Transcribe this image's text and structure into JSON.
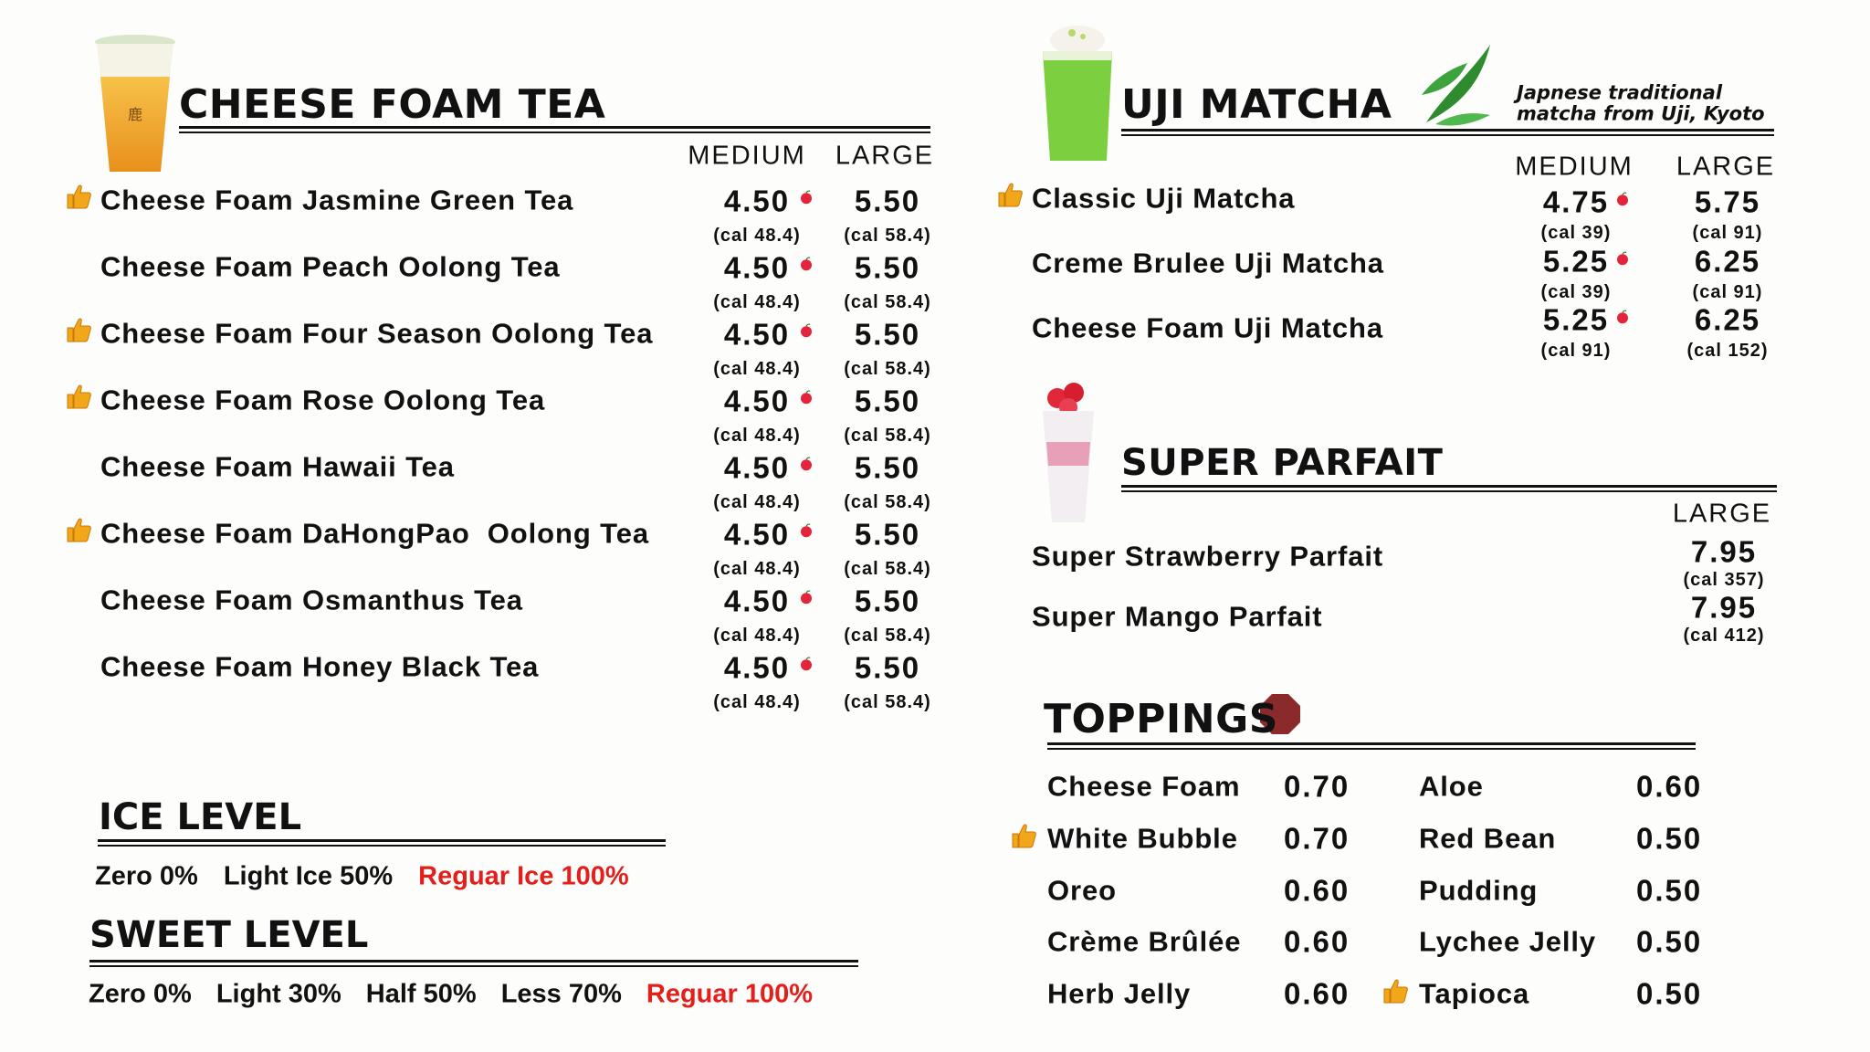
{
  "cheese_foam_tea": {
    "title": "CHEESE FOAM TEA",
    "columns": [
      "MEDIUM",
      "LARGE"
    ],
    "items": [
      {
        "name": "Cheese Foam Jasmine Green Tea",
        "recommended": true,
        "medium": "4.50",
        "medium_cal": "(cal 48.4)",
        "large": "5.50",
        "large_cal": "(cal 58.4)"
      },
      {
        "name": "Cheese Foam Peach Oolong Tea",
        "recommended": false,
        "medium": "4.50",
        "medium_cal": "(cal 48.4)",
        "large": "5.50",
        "large_cal": "(cal 58.4)"
      },
      {
        "name": "Cheese Foam Four Season Oolong Tea",
        "recommended": true,
        "medium": "4.50",
        "medium_cal": "(cal 48.4)",
        "large": "5.50",
        "large_cal": "(cal 58.4)"
      },
      {
        "name": "Cheese Foam Rose Oolong Tea",
        "recommended": true,
        "medium": "4.50",
        "medium_cal": "(cal 48.4)",
        "large": "5.50",
        "large_cal": "(cal 58.4)"
      },
      {
        "name": "Cheese Foam Hawaii Tea",
        "recommended": false,
        "medium": "4.50",
        "medium_cal": "(cal 48.4)",
        "large": "5.50",
        "large_cal": "(cal 58.4)"
      },
      {
        "name": "Cheese Foam DaHongPao  Oolong Tea",
        "recommended": true,
        "medium": "4.50",
        "medium_cal": "(cal 48.4)",
        "large": "5.50",
        "large_cal": "(cal 58.4)"
      },
      {
        "name": "Cheese Foam Osmanthus Tea",
        "recommended": false,
        "medium": "4.50",
        "medium_cal": "(cal 48.4)",
        "large": "5.50",
        "large_cal": "(cal 58.4)"
      },
      {
        "name": "Cheese Foam Honey Black Tea",
        "recommended": false,
        "medium": "4.50",
        "medium_cal": "(cal 48.4)",
        "large": "5.50",
        "large_cal": "(cal 58.4)"
      }
    ]
  },
  "uji_matcha": {
    "title": "UJI MATCHA",
    "note": [
      "Japnese traditional",
      "matcha from Uji, Kyoto"
    ],
    "columns": [
      "MEDIUM",
      "LARGE"
    ],
    "items": [
      {
        "name": "Classic Uji Matcha",
        "recommended": true,
        "medium": "4.75",
        "medium_cal": "(cal 39)",
        "large": "5.75",
        "large_cal": "(cal 91)"
      },
      {
        "name": "Creme Brulee Uji Matcha",
        "recommended": false,
        "medium": "5.25",
        "medium_cal": "(cal 39)",
        "large": "6.25",
        "large_cal": "(cal 91)"
      },
      {
        "name": "Cheese Foam Uji Matcha",
        "recommended": false,
        "medium": "5.25",
        "medium_cal": "(cal 91)",
        "large": "6.25",
        "large_cal": "(cal 152)"
      }
    ]
  },
  "super_parfait": {
    "title": "SUPER PARFAIT",
    "columns": [
      "LARGE"
    ],
    "items": [
      {
        "name": "Super Strawberry Parfait",
        "large": "7.95",
        "large_cal": "(cal 357)"
      },
      {
        "name": "Super Mango Parfait",
        "large": "7.95",
        "large_cal": "(cal 412)"
      }
    ]
  },
  "toppings": {
    "title": "TOPPINGS",
    "items": [
      {
        "name": "Cheese Foam",
        "price": "0.70",
        "recommended": false
      },
      {
        "name": "White Bubble",
        "price": "0.70",
        "recommended": true
      },
      {
        "name": "Oreo",
        "price": "0.60",
        "recommended": false
      },
      {
        "name": "Crème Brûlée",
        "price": "0.60",
        "recommended": false
      },
      {
        "name": "Herb Jelly",
        "price": "0.60",
        "recommended": false
      },
      {
        "name": "Aloe",
        "price": "0.60",
        "recommended": false
      },
      {
        "name": "Red Bean",
        "price": "0.50",
        "recommended": false
      },
      {
        "name": "Pudding",
        "price": "0.50",
        "recommended": false
      },
      {
        "name": "Lychee Jelly",
        "price": "0.50",
        "recommended": false
      },
      {
        "name": "Tapioca",
        "price": "0.50",
        "recommended": true
      }
    ]
  },
  "ice_level": {
    "title": "ICE LEVEL",
    "options": [
      "Zero 0%",
      "Light Ice 50%",
      "Reguar Ice 100%"
    ],
    "default": 2
  },
  "sweet_level": {
    "title": "SWEET LEVEL",
    "options": [
      "Zero 0%",
      "Light 30%",
      "Half 50%",
      "Less 70%",
      "Reguar 100%"
    ],
    "default": 4
  }
}
